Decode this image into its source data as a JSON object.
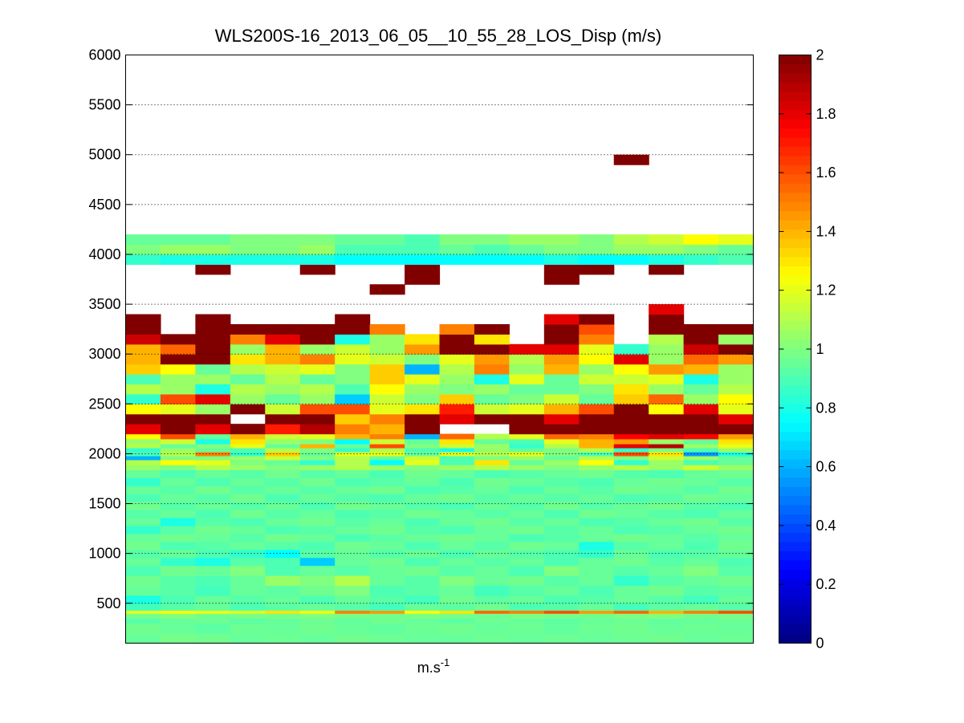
{
  "chart_data": {
    "type": "heatmap",
    "title": "WLS200S-16_2013_06_05__10_55_28_LOS_Disp (m/s)",
    "xlabel": "m.s",
    "xlabel_superscript": "-1",
    "ylabel": "",
    "ylim": [
      100,
      6000
    ],
    "yticks": [
      500,
      1000,
      1500,
      2000,
      2500,
      3000,
      3500,
      4000,
      4500,
      5000,
      5500,
      6000
    ],
    "grid": "horizontal dotted",
    "n_columns": 18,
    "colormap": "jet",
    "colorbar": {
      "range": [
        0,
        2
      ],
      "ticks": [
        0,
        0.2,
        0.4,
        0.6,
        0.8,
        1,
        1.2,
        1.4,
        1.6,
        1.8,
        2
      ]
    },
    "bins": [
      {
        "z0": 100,
        "z1": 200,
        "values": [
          0.95,
          0.98,
          0.97,
          0.95,
          0.96,
          0.95,
          0.97,
          0.96,
          0.95,
          0.95,
          0.96,
          0.95,
          0.96,
          0.95,
          0.96,
          0.97,
          0.95,
          0.96
        ]
      },
      {
        "z0": 200,
        "z1": 300,
        "values": [
          0.97,
          0.95,
          0.93,
          0.96,
          0.95,
          0.97,
          0.95,
          0.94,
          0.96,
          0.97,
          0.95,
          0.96,
          0.94,
          0.96,
          0.97,
          0.95,
          0.96,
          0.95
        ]
      },
      {
        "z0": 300,
        "z1": 350,
        "values": [
          0.92,
          0.95,
          0.96,
          0.93,
          0.95,
          0.96,
          0.94,
          0.97,
          0.95,
          0.93,
          0.96,
          0.95,
          0.93,
          0.95,
          0.96,
          0.94,
          0.95,
          0.96
        ]
      },
      {
        "z0": 350,
        "z1": 400,
        "values": [
          0.98,
          1.0,
          0.97,
          0.99,
          0.98,
          1.0,
          0.98,
          0.97,
          0.99,
          0.98,
          0.97,
          0.99,
          0.98,
          0.97,
          0.99,
          1.0,
          0.97,
          0.98
        ]
      },
      {
        "z0": 400,
        "z1": 430,
        "values": [
          1.2,
          1.25,
          1.22,
          1.18,
          1.3,
          1.22,
          1.5,
          1.45,
          1.25,
          1.3,
          1.55,
          1.5,
          1.6,
          1.45,
          1.55,
          1.4,
          1.5,
          1.6
        ]
      },
      {
        "z0": 430,
        "z1": 500,
        "values": [
          0.88,
          0.92,
          0.95,
          0.9,
          0.93,
          0.95,
          0.92,
          0.88,
          0.95,
          0.93,
          0.97,
          0.9,
          0.92,
          0.95,
          0.88,
          0.93,
          0.95,
          0.92
        ]
      },
      {
        "z0": 500,
        "z1": 580,
        "values": [
          0.8,
          0.9,
          0.95,
          0.92,
          0.95,
          0.9,
          0.95,
          0.92,
          0.88,
          0.97,
          0.93,
          0.95,
          0.9,
          0.92,
          0.95,
          0.92,
          0.88,
          0.95
        ]
      },
      {
        "z0": 580,
        "z1": 680,
        "values": [
          0.95,
          0.92,
          0.88,
          0.95,
          0.93,
          0.97,
          1.0,
          0.9,
          0.92,
          0.95,
          0.88,
          0.92,
          0.95,
          0.9,
          0.95,
          0.97,
          0.92,
          0.93
        ]
      },
      {
        "z0": 680,
        "z1": 780,
        "values": [
          0.97,
          0.92,
          0.9,
          0.95,
          1.05,
          1.0,
          1.1,
          0.95,
          0.92,
          1.0,
          0.95,
          0.97,
          0.92,
          0.95,
          0.85,
          0.92,
          0.95,
          0.97
        ]
      },
      {
        "z0": 780,
        "z1": 880,
        "values": [
          0.9,
          0.97,
          0.95,
          1.0,
          0.9,
          0.95,
          0.92,
          0.95,
          0.97,
          0.92,
          0.95,
          0.9,
          1.0,
          0.95,
          0.92,
          0.95,
          1.0,
          0.92
        ]
      },
      {
        "z0": 880,
        "z1": 960,
        "values": [
          0.95,
          0.85,
          0.8,
          0.92,
          0.9,
          0.65,
          0.95,
          0.97,
          0.9,
          0.95,
          0.92,
          0.95,
          0.9,
          0.95,
          0.97,
          0.92,
          0.95,
          0.9
        ]
      },
      {
        "z0": 960,
        "z1": 1040,
        "values": [
          0.92,
          0.95,
          0.9,
          0.85,
          0.75,
          0.92,
          0.95,
          0.92,
          0.95,
          0.9,
          0.95,
          0.92,
          0.9,
          0.85,
          0.95,
          0.9,
          0.92,
          0.95
        ]
      },
      {
        "z0": 1040,
        "z1": 1120,
        "values": [
          0.97,
          0.9,
          0.92,
          0.95,
          0.92,
          0.9,
          0.97,
          0.95,
          0.9,
          0.95,
          0.92,
          0.97,
          0.95,
          0.8,
          0.92,
          0.95,
          0.9,
          0.97
        ]
      },
      {
        "z0": 1120,
        "z1": 1200,
        "values": [
          0.95,
          0.97,
          0.95,
          0.92,
          0.97,
          0.95,
          0.9,
          0.93,
          0.95,
          0.97,
          0.95,
          0.9,
          0.92,
          0.95,
          0.97,
          0.95,
          0.92,
          0.95
        ]
      },
      {
        "z0": 1200,
        "z1": 1280,
        "values": [
          0.85,
          0.92,
          0.97,
          0.95,
          0.9,
          0.92,
          0.95,
          0.97,
          0.92,
          0.9,
          0.95,
          0.97,
          0.92,
          0.95,
          0.9,
          0.92,
          0.95,
          0.97
        ]
      },
      {
        "z0": 1280,
        "z1": 1360,
        "values": [
          0.95,
          0.8,
          0.92,
          0.9,
          0.95,
          0.97,
          0.92,
          0.95,
          0.9,
          0.95,
          0.97,
          0.92,
          0.95,
          0.9,
          0.92,
          0.95,
          0.97,
          0.92
        ]
      },
      {
        "z0": 1360,
        "z1": 1440,
        "values": [
          0.92,
          0.95,
          0.9,
          0.97,
          0.92,
          0.95,
          0.9,
          0.92,
          0.97,
          0.95,
          0.92,
          0.95,
          0.9,
          0.97,
          0.95,
          0.92,
          0.9,
          0.95
        ]
      },
      {
        "z0": 1440,
        "z1": 1520,
        "values": [
          0.97,
          0.92,
          0.95,
          0.92,
          0.95,
          0.9,
          0.97,
          0.95,
          0.92,
          0.9,
          0.95,
          0.92,
          0.97,
          0.92,
          0.95,
          0.97,
          0.92,
          0.9
        ]
      },
      {
        "z0": 1520,
        "z1": 1600,
        "values": [
          0.9,
          0.95,
          0.92,
          0.97,
          0.9,
          0.95,
          0.92,
          0.9,
          0.95,
          0.97,
          0.92,
          0.95,
          0.92,
          0.95,
          0.9,
          0.92,
          0.97,
          0.95
        ]
      },
      {
        "z0": 1600,
        "z1": 1680,
        "values": [
          0.95,
          0.92,
          0.97,
          0.92,
          0.95,
          0.92,
          0.95,
          0.97,
          0.9,
          0.92,
          0.95,
          0.9,
          0.95,
          0.92,
          0.97,
          0.95,
          0.92,
          0.97
        ]
      },
      {
        "z0": 1680,
        "z1": 1760,
        "values": [
          0.85,
          0.95,
          0.9,
          0.95,
          0.92,
          0.97,
          0.9,
          0.92,
          0.95,
          0.9,
          0.97,
          0.95,
          0.92,
          0.9,
          0.95,
          0.97,
          0.95,
          0.92
        ]
      },
      {
        "z0": 1760,
        "z1": 1840,
        "values": [
          0.95,
          0.9,
          0.95,
          0.92,
          0.97,
          0.92,
          0.95,
          0.9,
          0.97,
          0.95,
          0.9,
          0.92,
          0.95,
          0.97,
          0.92,
          0.9,
          0.95,
          0.97
        ]
      },
      {
        "z0": 1840,
        "z1": 1890,
        "values": [
          1.05,
          1.0,
          1.1,
          1.05,
          1.0,
          1.05,
          1.1,
          1.05,
          1.0,
          1.05,
          1.1,
          1.05,
          1.0,
          1.05,
          1.1,
          1.05,
          1.15,
          1.05
        ]
      },
      {
        "z0": 1890,
        "z1": 1940,
        "values": [
          1.1,
          1.25,
          1.2,
          1.0,
          0.95,
          0.85,
          1.1,
          0.75,
          1.2,
          0.9,
          1.3,
          0.95,
          1.05,
          1.25,
          0.85,
          1.05,
          0.9,
          0.95
        ]
      },
      {
        "z0": 1940,
        "z1": 1980,
        "values": [
          0.6,
          1.0,
          1.0,
          1.05,
          1.15,
          1.0,
          1.1,
          0.95,
          1.15,
          0.9,
          1.0,
          1.05,
          0.95,
          1.1,
          1.0,
          1.15,
          1.05,
          0.95
        ]
      },
      {
        "z0": 1980,
        "z1": 2020,
        "values": [
          0.9,
          1.1,
          1.5,
          0.85,
          1.35,
          0.95,
          1.2,
          1.2,
          0.95,
          1.2,
          1.1,
          1.2,
          1.0,
          0.9,
          1.6,
          1.3,
          0.55,
          0.8
        ]
      },
      {
        "z0": 2020,
        "z1": 2060,
        "values": [
          0.85,
          1.05,
          0.95,
          0.9,
          1.1,
          1.0,
          0.85,
          1.1,
          0.9,
          0.8,
          1.05,
          0.95,
          1.0,
          1.1,
          0.85,
          1.0,
          0.9,
          1.05
        ]
      },
      {
        "z0": 2060,
        "z1": 2100,
        "values": [
          1.1,
          0.95,
          1.0,
          1.2,
          0.95,
          1.4,
          0.95,
          1.6,
          1.0,
          1.15,
          1.05,
          0.85,
          1.1,
          1.4,
          1.8,
          1.9,
          1.05,
          1.2
        ]
      },
      {
        "z0": 2100,
        "z1": 2150,
        "values": [
          1.05,
          1.15,
          0.8,
          1.3,
          1.05,
          1.0,
          0.75,
          1.15,
          0.95,
          1.3,
          0.95,
          0.9,
          1.2,
          1.4,
          1.45,
          1.05,
          0.95,
          1.3
        ]
      },
      {
        "z0": 2150,
        "z1": 2200,
        "values": [
          1.25,
          1.6,
          0.95,
          1.4,
          1.15,
          1.2,
          1.4,
          1.5,
          0.6,
          1.55,
          1.1,
          1.2,
          1.55,
          1.5,
          1.75,
          1.8,
          1.75,
          1.45
        ]
      },
      {
        "z0": 2200,
        "z1": 2300,
        "values": [
          1.8,
          2.0,
          1.8,
          2.0,
          1.7,
          1.9,
          1.5,
          1.4,
          2.0,
          null,
          null,
          2.0,
          2.0,
          2.0,
          2.0,
          2.0,
          2.0,
          2.0
        ]
      },
      {
        "z0": 2300,
        "z1": 2400,
        "values": [
          2.0,
          2.0,
          2.0,
          null,
          2.0,
          2.0,
          1.35,
          1.5,
          2.0,
          1.8,
          2.0,
          2.0,
          1.8,
          2.0,
          2.0,
          2.0,
          2.0,
          1.8
        ]
      },
      {
        "z0": 2400,
        "z1": 2500,
        "values": [
          1.25,
          1.2,
          1.05,
          2.0,
          1.15,
          1.6,
          1.6,
          1.2,
          1.3,
          1.7,
          1.15,
          1.2,
          1.4,
          1.6,
          2.0,
          1.25,
          1.8,
          1.2
        ]
      },
      {
        "z0": 2500,
        "z1": 2600,
        "values": [
          0.85,
          1.6,
          1.8,
          1.05,
          0.95,
          1.05,
          0.65,
          1.15,
          1.0,
          1.35,
          0.95,
          1.0,
          1.15,
          0.95,
          1.35,
          1.55,
          1.05,
          1.25
        ]
      },
      {
        "z0": 2600,
        "z1": 2700,
        "values": [
          1.1,
          1.05,
          0.8,
          1.1,
          1.05,
          1.1,
          0.9,
          1.25,
          1.05,
          1.0,
          1.05,
          0.95,
          0.95,
          1.0,
          1.3,
          1.05,
          0.95,
          1.1
        ]
      },
      {
        "z0": 2700,
        "z1": 2800,
        "values": [
          0.9,
          1.05,
          1.05,
          0.95,
          1.1,
          0.95,
          1.0,
          1.35,
          1.2,
          1.05,
          0.8,
          1.2,
          0.95,
          1.15,
          1.15,
          1.2,
          0.8,
          1.05
        ]
      },
      {
        "z0": 2800,
        "z1": 2900,
        "values": [
          1.35,
          1.25,
          0.95,
          1.1,
          1.15,
          1.2,
          1.0,
          1.35,
          0.6,
          1.1,
          1.5,
          1.05,
          1.4,
          1.05,
          1.25,
          1.45,
          1.4,
          1.05
        ]
      },
      {
        "z0": 2900,
        "z1": 3000,
        "values": [
          1.4,
          2.0,
          2.0,
          1.3,
          1.4,
          1.5,
          1.2,
          1.15,
          1.0,
          1.2,
          1.45,
          1.1,
          1.45,
          1.25,
          1.8,
          1.05,
          1.55,
          1.45
        ]
      },
      {
        "z0": 3000,
        "z1": 3100,
        "values": [
          1.4,
          1.55,
          2.0,
          1.05,
          1.4,
          1.05,
          1.15,
          1.05,
          1.45,
          2.0,
          2.0,
          1.8,
          1.8,
          1.2,
          0.85,
          1.05,
          1.85,
          2.0
        ]
      },
      {
        "z0": 3100,
        "z1": 3200,
        "values": [
          1.85,
          2.0,
          2.0,
          1.5,
          1.8,
          2.0,
          0.8,
          1.05,
          1.3,
          2.0,
          1.3,
          null,
          2.0,
          1.5,
          null,
          1.1,
          2.0,
          1.05
        ]
      },
      {
        "z0": 3200,
        "z1": 3300,
        "values": [
          2.0,
          null,
          2.0,
          2.0,
          2.0,
          2.0,
          2.0,
          1.5,
          null,
          1.5,
          2.0,
          null,
          2.0,
          1.6,
          null,
          2.0,
          2.0,
          2.0
        ]
      },
      {
        "z0": 3300,
        "z1": 3400,
        "values": [
          2.0,
          null,
          2.0,
          null,
          null,
          null,
          2.0,
          null,
          null,
          null,
          null,
          null,
          1.8,
          2.0,
          null,
          2.0,
          null,
          null
        ]
      },
      {
        "z0": 3400,
        "z1": 3500,
        "values": [
          null,
          null,
          null,
          null,
          null,
          null,
          null,
          null,
          null,
          null,
          null,
          null,
          null,
          null,
          null,
          1.8,
          null,
          null
        ]
      },
      {
        "z0": 3600,
        "z1": 3700,
        "values": [
          null,
          null,
          null,
          null,
          null,
          null,
          null,
          2.0,
          null,
          null,
          null,
          null,
          null,
          null,
          null,
          null,
          null,
          null
        ]
      },
      {
        "z0": 3700,
        "z1": 3800,
        "values": [
          null,
          null,
          null,
          null,
          null,
          null,
          null,
          null,
          2.0,
          null,
          null,
          null,
          2.0,
          null,
          null,
          null,
          null,
          null
        ]
      },
      {
        "z0": 3800,
        "z1": 3900,
        "values": [
          null,
          null,
          2.0,
          null,
          null,
          2.0,
          null,
          null,
          2.0,
          null,
          null,
          null,
          2.0,
          2.0,
          null,
          2.0,
          null,
          null
        ]
      },
      {
        "z0": 3900,
        "z1": 4000,
        "values": [
          0.85,
          0.8,
          0.8,
          0.8,
          0.8,
          0.8,
          0.75,
          0.75,
          0.75,
          0.75,
          0.75,
          0.75,
          0.8,
          0.75,
          0.75,
          0.8,
          0.85,
          0.9
        ]
      },
      {
        "z0": 4000,
        "z1": 4100,
        "values": [
          1.0,
          1.05,
          1.05,
          1.0,
          1.0,
          1.05,
          0.9,
          0.9,
          0.9,
          0.95,
          0.9,
          0.95,
          1.0,
          1.0,
          1.05,
          1.05,
          1.0,
          0.95
        ]
      },
      {
        "z0": 4100,
        "z1": 4200,
        "values": [
          0.95,
          0.95,
          0.95,
          1.0,
          1.0,
          1.0,
          0.95,
          0.95,
          0.9,
          1.0,
          1.0,
          1.05,
          1.05,
          1.0,
          1.1,
          1.15,
          1.25,
          1.2
        ]
      },
      {
        "z0": 4900,
        "z1": 5000,
        "values": [
          null,
          null,
          null,
          null,
          null,
          null,
          null,
          null,
          null,
          null,
          null,
          null,
          null,
          null,
          2.0,
          null,
          null,
          null
        ]
      }
    ]
  }
}
